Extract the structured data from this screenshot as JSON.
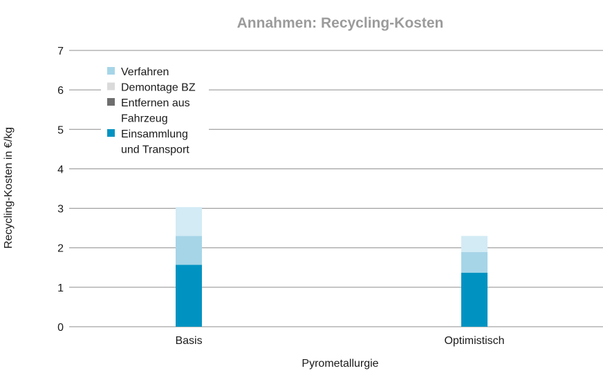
{
  "chart_data": {
    "type": "bar",
    "stacked": true,
    "title": "Annahmen: Recycling-Kosten",
    "xlabel": "Pyrometallurgie",
    "ylabel": "Recycling-Kosten in €/kg",
    "ylim": [
      0,
      7
    ],
    "yticks": [
      "0",
      "1",
      "2",
      "3",
      "4",
      "5",
      "6",
      "7"
    ],
    "grid": true,
    "legend_position": "top-left",
    "categories": [
      "Basis",
      "Optimistisch"
    ],
    "series": [
      {
        "name": "Einsammlung und Transport",
        "legend_lines": [
          "Einsammlung",
          "und Transport"
        ],
        "color": "#0093c2",
        "values": [
          1.57,
          1.37
        ]
      },
      {
        "name": "Entfernen aus Fahrzeug",
        "legend_lines": [
          "Entfernen aus",
          "Fahrzeug"
        ],
        "color": "#6e6e6e",
        "values": [
          0,
          0
        ]
      },
      {
        "name": "Demontage BZ",
        "legend_lines": [
          "Demontage BZ"
        ],
        "color": "#dadada",
        "values": [
          0,
          0
        ]
      },
      {
        "name": "Verfahren",
        "legend_lines": [
          "Verfahren"
        ],
        "color": "#a6d5e8",
        "values": [
          0.73,
          0.52
        ]
      }
    ],
    "unlabeled_top_segment": {
      "color": "#d3ebf5",
      "values": [
        0.73,
        0.41
      ]
    }
  }
}
